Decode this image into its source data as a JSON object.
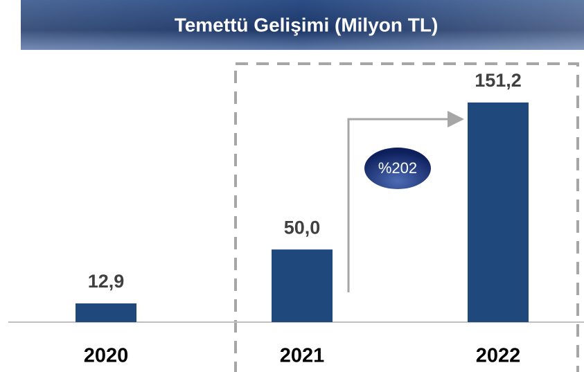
{
  "chart_data": {
    "type": "bar",
    "title": "Temettü Gelişimi (Milyon TL)",
    "categories": [
      "2020",
      "2021",
      "2022"
    ],
    "values": [
      12.9,
      50.0,
      151.2
    ],
    "value_labels": [
      "12,9",
      "50,0",
      "151,2"
    ],
    "color": "#1f497d",
    "annotation": "%202"
  }
}
